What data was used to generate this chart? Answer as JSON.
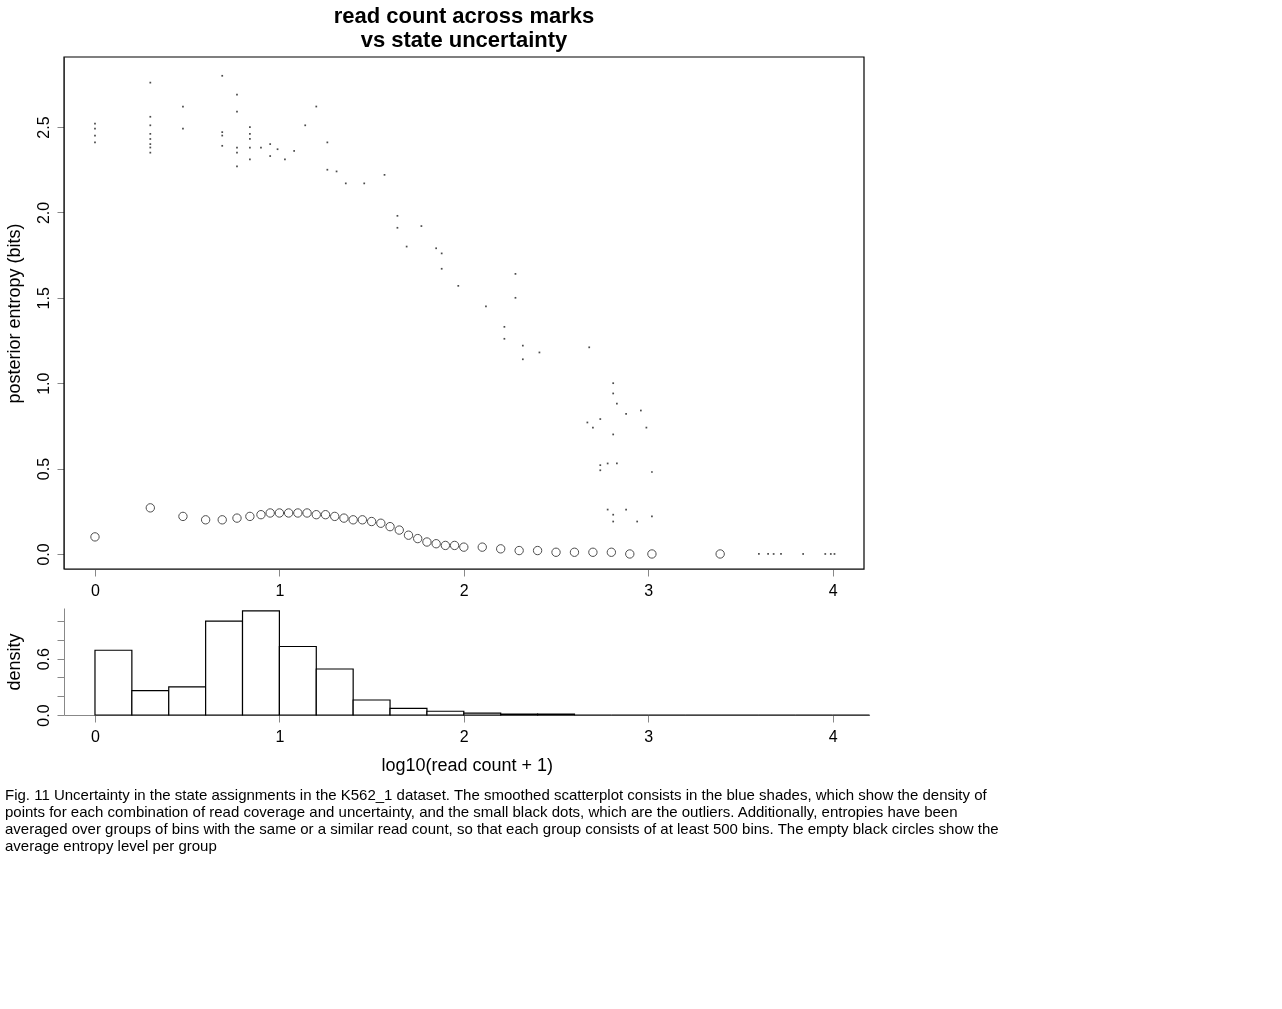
{
  "chart_data": [
    {
      "type": "scatter",
      "title": "read count across marks\nvs state uncertainty",
      "ylabel": "posterior entropy (bits)",
      "xlim": [
        -0.168,
        4.17
      ],
      "ylim": [
        -0.088,
        2.91
      ],
      "xticks": [
        0,
        1,
        2,
        3,
        4
      ],
      "yticks": [
        {
          "value": 0,
          "label": "0.0"
        },
        0.5,
        {
          "value": 1,
          "label": "1.0"
        },
        1.5,
        {
          "value": 2,
          "label": "2.0"
        },
        2.5
      ],
      "series": [
        {
          "color": "#000000",
          "marker": "square",
          "x": [
            0,
            0,
            0,
            0,
            0.3,
            0.3,
            0.3,
            0.3,
            0.3,
            0.3,
            0.3,
            0.3,
            0.477,
            0.477,
            0.69,
            0.69,
            0.69,
            0.69,
            0.77,
            0.77,
            0.77,
            0.77,
            0.77,
            0.84,
            0.84,
            0.84,
            0.84,
            0.84,
            0.9,
            0.95,
            0.95,
            0.99,
            1.03,
            1.08,
            1.14,
            1.2,
            1.26,
            1.26,
            1.31,
            1.36,
            1.46,
            1.57,
            1.64,
            1.64,
            1.69,
            1.77,
            1.85,
            1.88,
            1.88,
            1.97,
            2.12,
            2.28,
            2.28,
            2.22,
            2.22,
            2.32,
            2.32,
            2.41,
            2.68,
            2.67,
            2.7,
            2.74,
            2.74,
            2.74,
            2.78,
            2.78,
            2.81,
            2.81,
            2.81,
            2.81,
            2.81,
            2.83,
            2.83,
            2.88,
            2.88,
            2.94,
            2.96,
            2.99,
            3.02,
            3.02,
            3.6,
            3.65,
            3.68,
            3.72,
            3.84,
            3.96,
            3.99,
            4.01
          ],
          "values": [
            2.52,
            2.49,
            2.45,
            2.41,
            2.76,
            2.56,
            2.51,
            2.46,
            2.43,
            2.4,
            2.38,
            2.35,
            2.62,
            2.49,
            2.8,
            2.47,
            2.45,
            2.39,
            2.69,
            2.59,
            2.38,
            2.27,
            2.35,
            2.5,
            2.46,
            2.43,
            2.38,
            2.31,
            2.38,
            2.4,
            2.33,
            2.37,
            2.31,
            2.36,
            2.51,
            2.62,
            2.41,
            2.25,
            2.24,
            2.17,
            2.17,
            2.22,
            1.98,
            1.91,
            1.8,
            1.92,
            1.79,
            1.76,
            1.67,
            1.57,
            1.45,
            1.64,
            1.5,
            1.33,
            1.26,
            1.22,
            1.14,
            1.18,
            1.21,
            0.77,
            0.74,
            0.79,
            0.52,
            0.49,
            0.53,
            0.26,
            1.0,
            0.94,
            0.7,
            0.23,
            0.19,
            0.88,
            0.53,
            0.82,
            0.26,
            0.19,
            0.84,
            0.74,
            0.48,
            0.22,
            0.0,
            0.0,
            0.0,
            0.0,
            0.0,
            0.0,
            0.0,
            0.0
          ]
        },
        {
          "color": "#000000",
          "marker": "circle",
          "x": [
            0,
            0.3,
            0.477,
            0.6,
            0.69,
            0.77,
            0.84,
            0.9,
            0.95,
            1.0,
            1.05,
            1.1,
            1.15,
            1.2,
            1.25,
            1.3,
            1.35,
            1.4,
            1.45,
            1.5,
            1.55,
            1.6,
            1.65,
            1.7,
            1.75,
            1.8,
            1.85,
            1.9,
            1.95,
            2.0,
            2.1,
            2.2,
            2.3,
            2.4,
            2.5,
            2.6,
            2.7,
            2.8,
            2.9,
            3.02,
            3.39
          ],
          "values": [
            0.1,
            0.27,
            0.22,
            0.2,
            0.2,
            0.21,
            0.22,
            0.23,
            0.24,
            0.24,
            0.24,
            0.24,
            0.24,
            0.23,
            0.23,
            0.22,
            0.21,
            0.2,
            0.2,
            0.19,
            0.18,
            0.16,
            0.14,
            0.11,
            0.09,
            0.07,
            0.06,
            0.05,
            0.05,
            0.04,
            0.04,
            0.03,
            0.02,
            0.02,
            0.01,
            0.01,
            0.01,
            0.01,
            0.0,
            0.0,
            0.0
          ]
        }
      ]
    },
    {
      "type": "histogram",
      "xlabel": "log10(read count + 1)",
      "ylabel": "density",
      "xlim": [
        -0.168,
        4.2
      ],
      "ylim": [
        0,
        1.14
      ],
      "xticks": [
        0,
        1,
        2,
        3,
        4
      ],
      "yticks": [
        {
          "value": 0,
          "label": "0.0"
        },
        {
          "value": 0.2,
          "label": null
        },
        {
          "value": 0.4,
          "label": null
        },
        0.6,
        {
          "value": 0.8,
          "label": null
        },
        {
          "value": 1.0,
          "label": null
        }
      ],
      "bins": [
        0,
        0.2,
        0.4,
        0.6,
        0.8,
        1.0,
        1.2,
        1.4,
        1.6,
        1.8,
        2.0,
        2.2,
        2.4,
        2.6,
        2.8,
        3.0,
        3.2,
        3.4,
        3.6,
        3.8,
        4.0,
        4.2
      ],
      "values": [
        0.69,
        0.26,
        0.3,
        1.0,
        1.11,
        0.73,
        0.49,
        0.16,
        0.07,
        0.04,
        0.02,
        0.01,
        0.01,
        0.0,
        0.0,
        0.0,
        0.0,
        0.0,
        0.0,
        0.0,
        0.0
      ],
      "annotations": [
        "Fig. 11 Uncertainty in the state assignments in the K562_1 dataset. The smoothed scatterplot consists in the blue shades, which show the density of points for each combination of read coverage and uncertainty, and the small black dots, which are the outliers. Additionally, entropies have been averaged over groups of bins with the same or a similar read count, so that each group consists of at least 500 bins. The empty black circles show the average entropy level per group"
      ]
    }
  ]
}
